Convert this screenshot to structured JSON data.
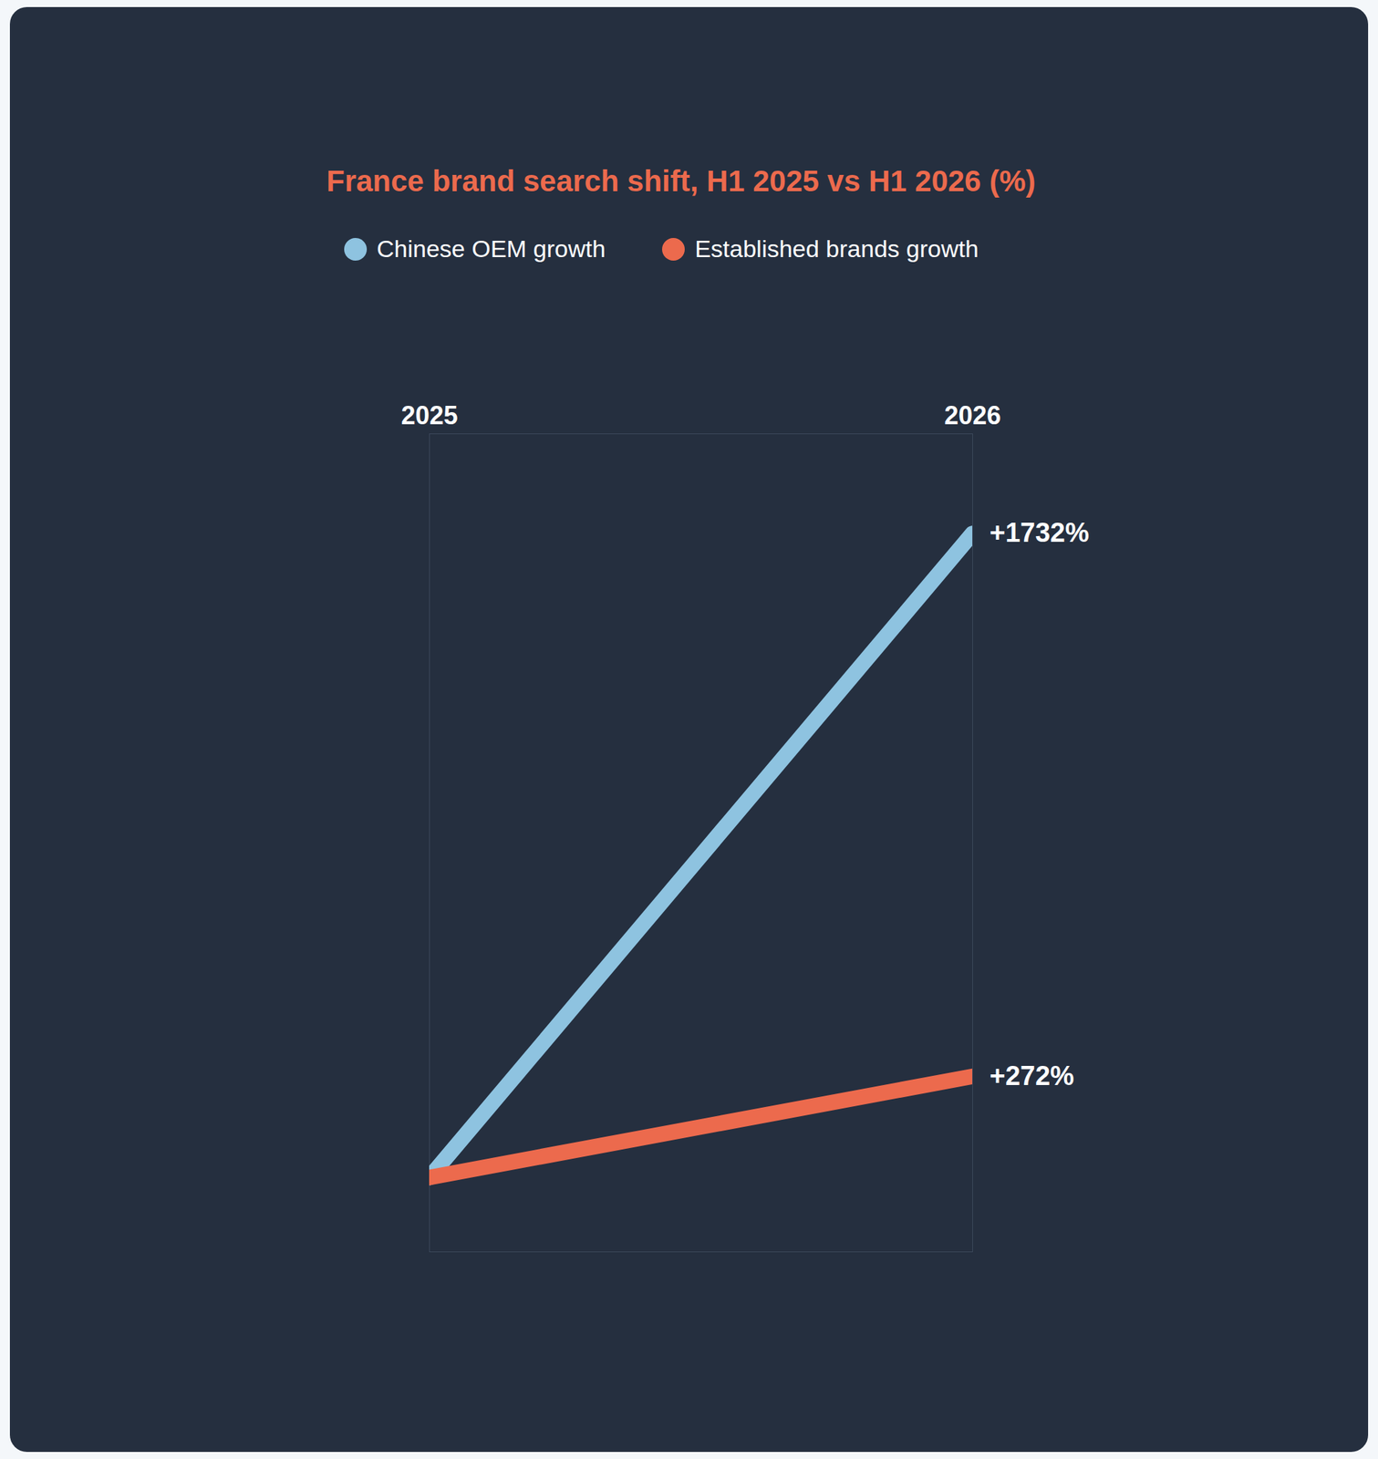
{
  "chart_data": {
    "type": "line",
    "title": "France brand search shift, H1 2025 vs H1 2026 (%)",
    "categories": [
      "2025",
      "2026"
    ],
    "series": [
      {
        "name": "Chinese OEM growth",
        "color": "#8ec3e0",
        "values": [
          0,
          1732
        ],
        "value_labels": [
          null,
          "+1732%"
        ]
      },
      {
        "name": "Established brands growth",
        "color": "#ec6a4d",
        "values": [
          0,
          272
        ],
        "value_labels": [
          null,
          "+272%"
        ]
      }
    ],
    "ylim": [
      -200,
      2000
    ],
    "yticks": [],
    "data_labels": true,
    "tick_labels": "x",
    "legend": "top"
  }
}
